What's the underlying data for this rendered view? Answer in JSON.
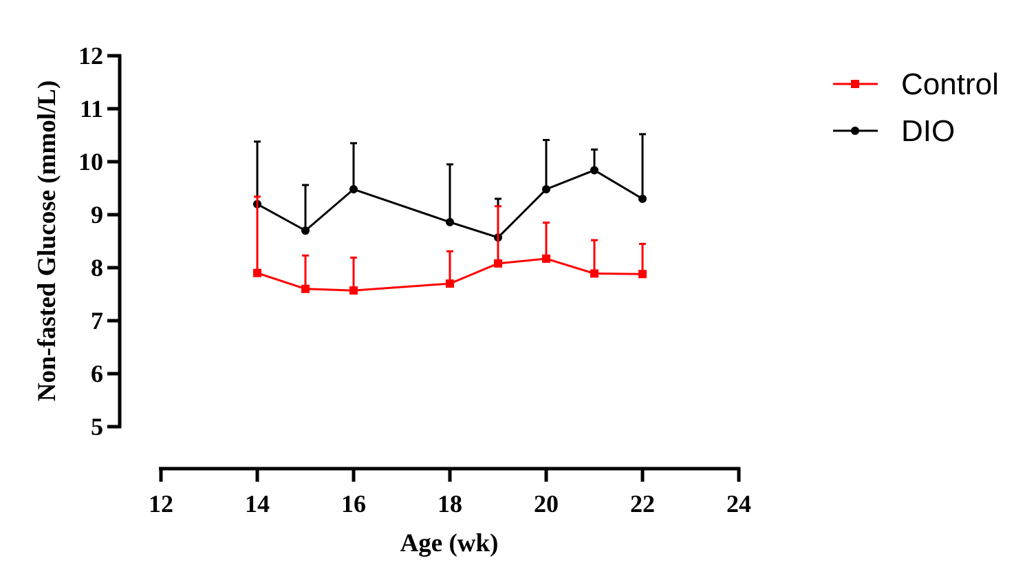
{
  "chart_data": {
    "type": "line",
    "xlabel": "Age (wk)",
    "ylabel": "Non-fasted Glucose (mmol/L)",
    "xlim": [
      12,
      24
    ],
    "ylim": [
      5,
      12
    ],
    "xticks": [
      "12",
      "14",
      "16",
      "18",
      "20",
      "22",
      "24"
    ],
    "yticks": [
      "5",
      "6",
      "7",
      "8",
      "9",
      "10",
      "11",
      "12"
    ],
    "x": [
      14,
      15,
      16,
      18,
      19,
      20,
      21,
      22
    ],
    "grid": false,
    "legend_position": "top-right",
    "series": [
      {
        "name": "Control",
        "color": "#ff0000",
        "marker": "square",
        "values": [
          7.9,
          7.6,
          7.57,
          7.7,
          8.08,
          8.17,
          7.89,
          7.88
        ],
        "error_upper": [
          9.34,
          8.23,
          8.19,
          8.31,
          9.16,
          8.85,
          8.52,
          8.45
        ]
      },
      {
        "name": "DIO",
        "color": "#000000",
        "marker": "circle",
        "values": [
          9.2,
          8.7,
          9.48,
          8.86,
          8.57,
          9.48,
          9.84,
          9.3
        ],
        "error_upper": [
          10.38,
          9.56,
          10.35,
          9.95,
          9.3,
          10.41,
          10.23,
          10.52
        ]
      }
    ]
  }
}
